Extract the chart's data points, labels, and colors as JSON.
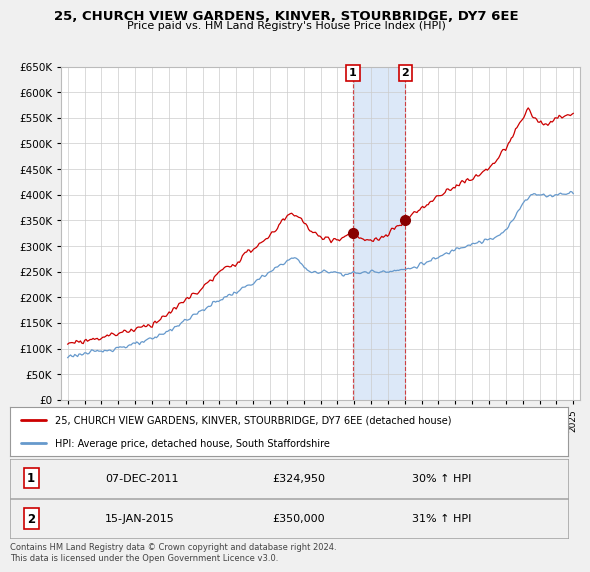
{
  "title": "25, CHURCH VIEW GARDENS, KINVER, STOURBRIDGE, DY7 6EE",
  "subtitle": "Price paid vs. HM Land Registry's House Price Index (HPI)",
  "legend_line1": "25, CHURCH VIEW GARDENS, KINVER, STOURBRIDGE, DY7 6EE (detached house)",
  "legend_line2": "HPI: Average price, detached house, South Staffordshire",
  "sale1_label": "1",
  "sale1_date": "07-DEC-2011",
  "sale1_price": "£324,950",
  "sale1_hpi": "30% ↑ HPI",
  "sale2_label": "2",
  "sale2_date": "15-JAN-2015",
  "sale2_price": "£350,000",
  "sale2_hpi": "31% ↑ HPI",
  "footer": "Contains HM Land Registry data © Crown copyright and database right 2024.\nThis data is licensed under the Open Government Licence v3.0.",
  "red_color": "#cc0000",
  "blue_color": "#6699cc",
  "highlight_color": "#dce8f8",
  "background_color": "#f0f0f0",
  "plot_bg": "#ffffff",
  "grid_color": "#cccccc",
  "ylim": [
    0,
    650000
  ],
  "yticks": [
    0,
    50000,
    100000,
    150000,
    200000,
    250000,
    300000,
    350000,
    400000,
    450000,
    500000,
    550000,
    600000,
    650000
  ],
  "sale1_year": 2011.92,
  "sale1_value": 324950,
  "sale2_year": 2015.04,
  "sale2_value": 350000,
  "xmin": 1994.6,
  "xmax": 2025.4
}
